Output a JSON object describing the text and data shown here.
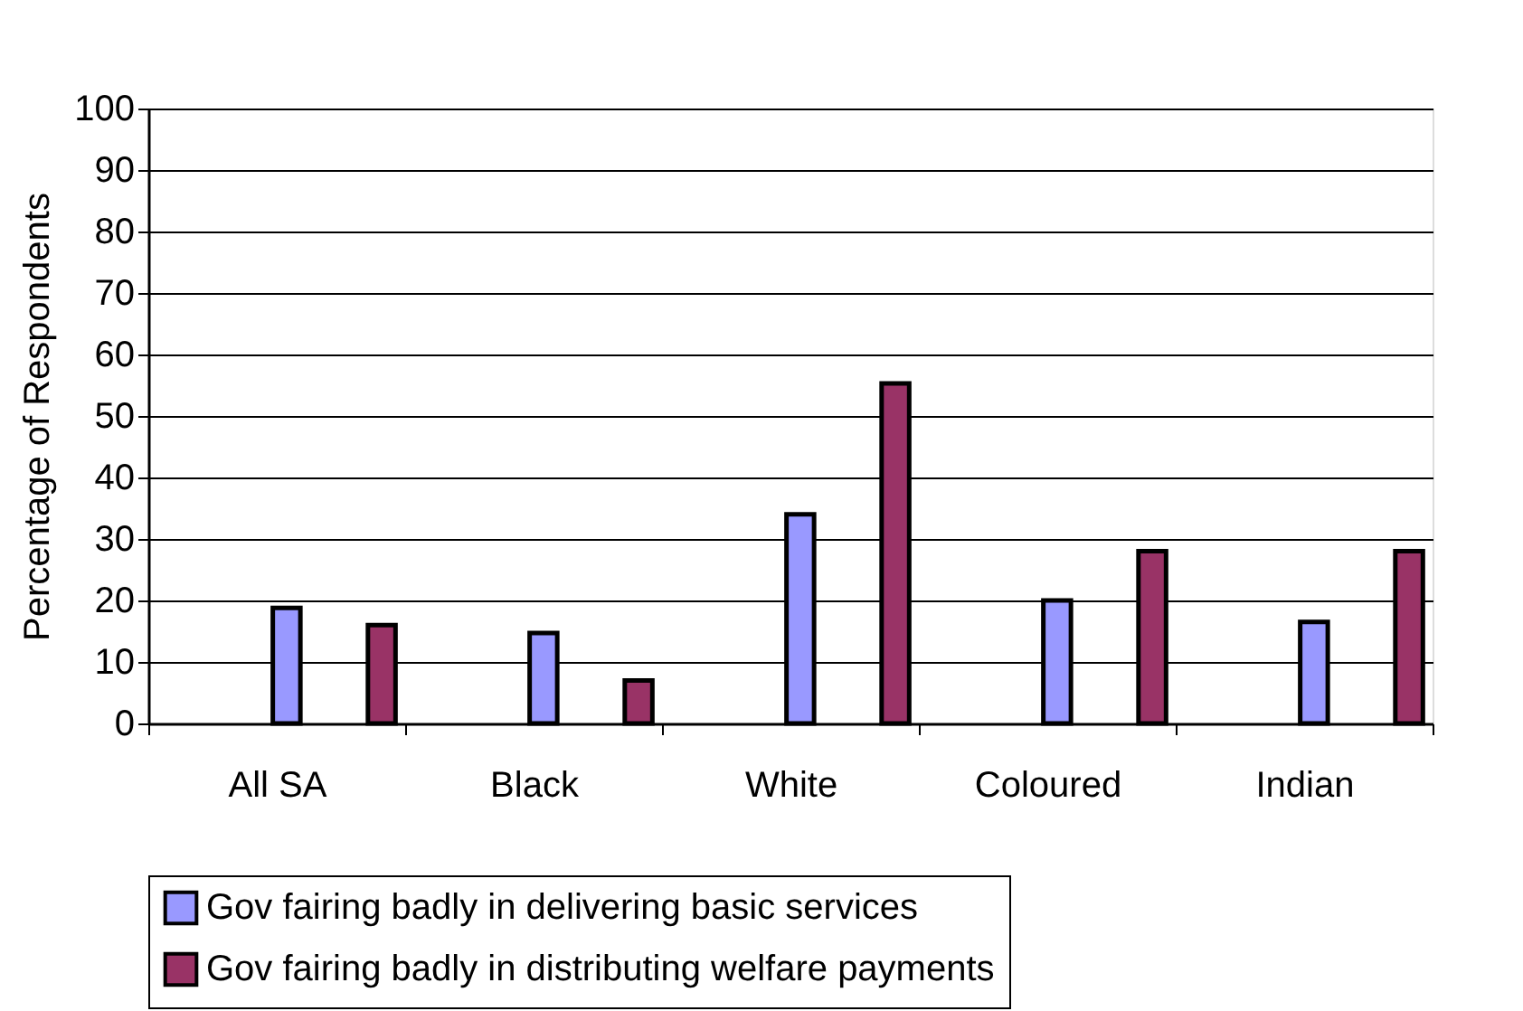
{
  "chart_data": {
    "type": "bar",
    "ylabel": "Percentage of Respondents",
    "categories": [
      "All SA",
      "Black",
      "White",
      "Coloured",
      "Indian"
    ],
    "series": [
      {
        "name": "Gov fairing badly in delivering basic services",
        "color": "#9999ff",
        "values": [
          18.8,
          14.7,
          34,
          20,
          16.5
        ]
      },
      {
        "name": "Gov fairing badly in distributing welfare payments",
        "color": "#993366",
        "values": [
          16,
          7,
          55.3,
          28,
          28
        ]
      }
    ],
    "ylim": [
      0,
      100
    ],
    "yticks": [
      0,
      10,
      20,
      30,
      40,
      50,
      60,
      70,
      80,
      90,
      100
    ],
    "grid": "y",
    "legend": "bottom"
  }
}
